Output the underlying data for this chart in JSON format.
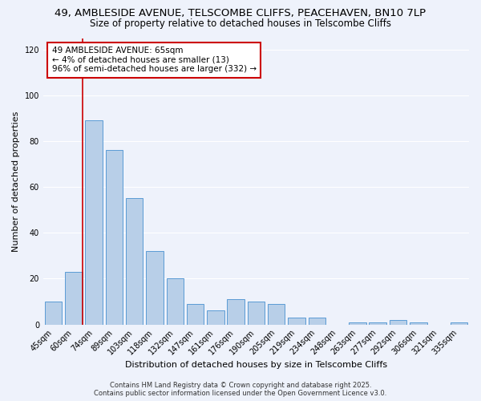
{
  "title": "49, AMBLESIDE AVENUE, TELSCOMBE CLIFFS, PEACEHAVEN, BN10 7LP",
  "subtitle": "Size of property relative to detached houses in Telscombe Cliffs",
  "xlabel": "Distribution of detached houses by size in Telscombe Cliffs",
  "ylabel": "Number of detached properties",
  "categories": [
    "45sqm",
    "60sqm",
    "74sqm",
    "89sqm",
    "103sqm",
    "118sqm",
    "132sqm",
    "147sqm",
    "161sqm",
    "176sqm",
    "190sqm",
    "205sqm",
    "219sqm",
    "234sqm",
    "248sqm",
    "263sqm",
    "277sqm",
    "292sqm",
    "306sqm",
    "321sqm",
    "335sqm"
  ],
  "values": [
    10,
    23,
    89,
    76,
    55,
    32,
    20,
    9,
    6,
    11,
    10,
    9,
    3,
    3,
    0,
    1,
    1,
    2,
    1,
    0,
    1
  ],
  "bar_color": "#b8cfe8",
  "bar_edge_color": "#5b9bd5",
  "vline_color": "#cc0000",
  "annotation_title": "49 AMBLESIDE AVENUE: 65sqm",
  "annotation_line1": "← 4% of detached houses are smaller (13)",
  "annotation_line2": "96% of semi-detached houses are larger (332) →",
  "annotation_box_color": "#ffffff",
  "annotation_box_edge_color": "#cc0000",
  "ylim": [
    0,
    125
  ],
  "yticks": [
    0,
    20,
    40,
    60,
    80,
    100,
    120
  ],
  "footer1": "Contains HM Land Registry data © Crown copyright and database right 2025.",
  "footer2": "Contains public sector information licensed under the Open Government Licence v3.0.",
  "bg_color": "#eef2fb",
  "plot_bg_color": "#eef2fb",
  "grid_color": "#ffffff",
  "title_fontsize": 9.5,
  "subtitle_fontsize": 8.5,
  "axis_label_fontsize": 8,
  "tick_fontsize": 7,
  "annotation_fontsize": 7.5
}
